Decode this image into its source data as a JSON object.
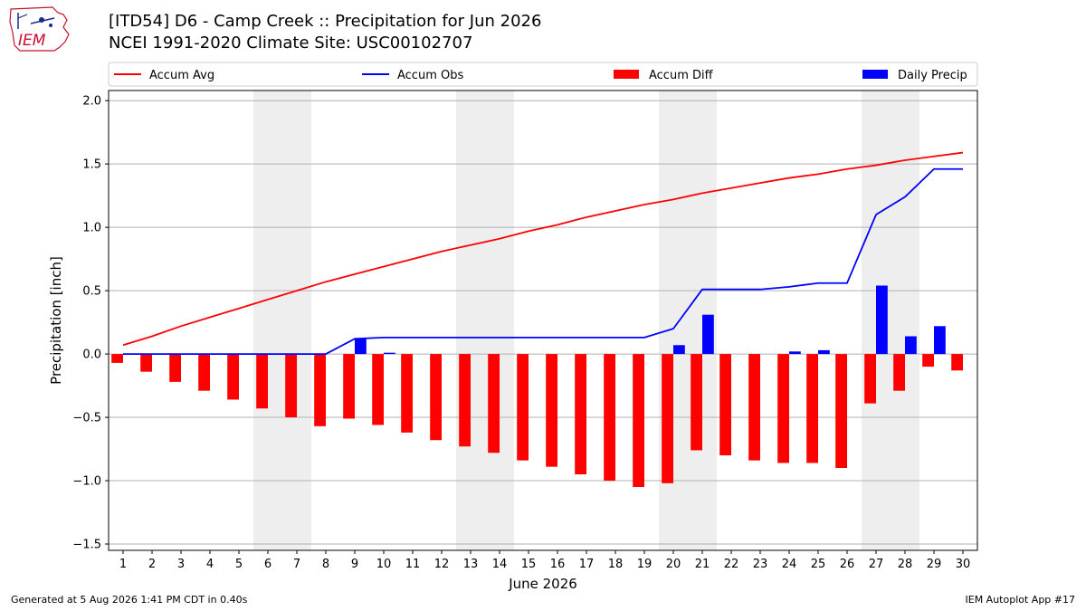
{
  "header": {
    "title_line1": "[ITD54] D6 - Camp Creek  :: Precipitation for Jun 2026",
    "title_line2": "NCEI 1991-2020 Climate Site: USC00102707",
    "logo_text": "IEM"
  },
  "footer": {
    "generated": "Generated at 5 Aug 2026 1:41 PM CDT in 0.40s",
    "app": "IEM Autoplot App #17"
  },
  "chart_data": {
    "type": "bar",
    "xlabel": "June 2026",
    "ylabel": "Precipitation [inch]",
    "ylim": [
      -1.55,
      2.08
    ],
    "xlim": [
      0.5,
      30.5
    ],
    "yticks": [
      -1.5,
      -1.0,
      -0.5,
      0.0,
      0.5,
      1.0,
      1.5,
      2.0
    ],
    "ytick_labels": [
      "−1.5",
      "−1.0",
      "−0.5",
      "0.0",
      "0.5",
      "1.0",
      "1.5",
      "2.0"
    ],
    "xticks": [
      1,
      2,
      3,
      4,
      5,
      6,
      7,
      8,
      9,
      10,
      11,
      12,
      13,
      14,
      15,
      16,
      17,
      18,
      19,
      20,
      21,
      22,
      23,
      24,
      25,
      26,
      27,
      28,
      29,
      30
    ],
    "grid": "horizontal",
    "weekend_bands": [
      [
        5.5,
        7.5
      ],
      [
        12.5,
        14.5
      ],
      [
        19.5,
        21.5
      ],
      [
        26.5,
        28.5
      ]
    ],
    "legend": {
      "placement": "top",
      "entries": [
        {
          "label": "Accum Avg",
          "kind": "line",
          "color": "#ff0000"
        },
        {
          "label": "Accum Obs",
          "kind": "line",
          "color": "#0000ff"
        },
        {
          "label": "Accum Diff",
          "kind": "bar",
          "color": "#ff0000"
        },
        {
          "label": "Daily Precip",
          "kind": "bar",
          "color": "#0000ff"
        }
      ]
    },
    "days": [
      1,
      2,
      3,
      4,
      5,
      6,
      7,
      8,
      9,
      10,
      11,
      12,
      13,
      14,
      15,
      16,
      17,
      18,
      19,
      20,
      21,
      22,
      23,
      24,
      25,
      26,
      27,
      28,
      29,
      30
    ],
    "series": [
      {
        "name": "Accum Avg",
        "color": "#ff0000",
        "values": [
          0.07,
          0.14,
          0.22,
          0.29,
          0.36,
          0.43,
          0.5,
          0.57,
          0.63,
          0.69,
          0.75,
          0.81,
          0.86,
          0.91,
          0.97,
          1.02,
          1.08,
          1.13,
          1.18,
          1.22,
          1.27,
          1.31,
          1.35,
          1.39,
          1.42,
          1.46,
          1.49,
          1.53,
          1.56,
          1.59
        ]
      },
      {
        "name": "Accum Obs",
        "color": "#0000ff",
        "values": [
          0.0,
          0.0,
          0.0,
          0.0,
          0.0,
          0.0,
          0.0,
          0.0,
          0.12,
          0.13,
          0.13,
          0.13,
          0.13,
          0.13,
          0.13,
          0.13,
          0.13,
          0.13,
          0.13,
          0.2,
          0.51,
          0.51,
          0.51,
          0.53,
          0.56,
          0.56,
          1.1,
          1.24,
          1.46,
          1.46
        ]
      },
      {
        "name": "Accum Diff",
        "color": "#ff0000",
        "values": [
          -0.07,
          -0.14,
          -0.22,
          -0.29,
          -0.36,
          -0.43,
          -0.5,
          -0.57,
          -0.51,
          -0.56,
          -0.62,
          -0.68,
          -0.73,
          -0.78,
          -0.84,
          -0.89,
          -0.95,
          -1.0,
          -1.05,
          -1.02,
          -0.76,
          -0.8,
          -0.84,
          -0.86,
          -0.86,
          -0.9,
          -0.39,
          -0.29,
          -0.1,
          -0.13
        ]
      },
      {
        "name": "Daily Precip",
        "color": "#0000ff",
        "values": [
          0.0,
          0.0,
          0.0,
          0.0,
          0.0,
          0.0,
          0.0,
          0.0,
          0.12,
          0.01,
          0.0,
          0.0,
          0.0,
          0.0,
          0.0,
          0.0,
          0.0,
          0.0,
          0.0,
          0.07,
          0.31,
          0.0,
          0.0,
          0.02,
          0.03,
          0.0,
          0.54,
          0.14,
          0.22,
          0.0
        ]
      }
    ]
  }
}
